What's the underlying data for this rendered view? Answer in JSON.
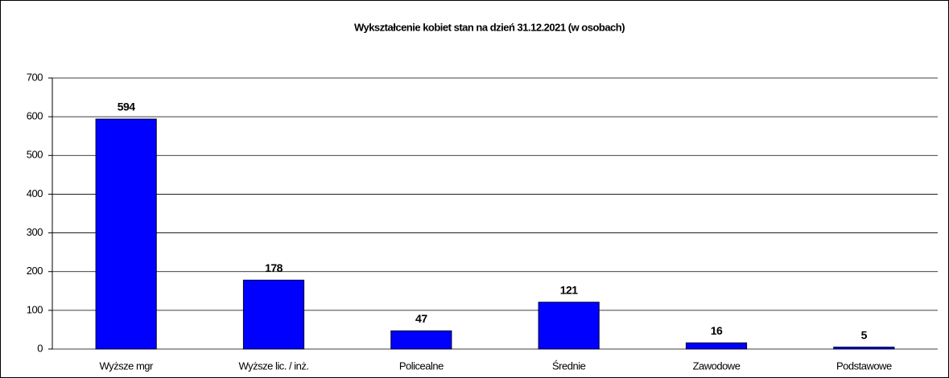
{
  "chart_data": {
    "type": "bar",
    "title": "Wykształcenie kobiet stan na dzień 31.12.2021 (w osobach)",
    "categories": [
      "Wyższe mgr",
      "Wyższe lic. / inż.",
      "Policealne",
      "Średnie",
      "Zawodowe",
      "Podstawowe"
    ],
    "values": [
      594,
      178,
      47,
      121,
      16,
      5
    ],
    "color": "#0000ff",
    "ylim": [
      0,
      700
    ],
    "yticks": [
      0,
      100,
      200,
      300,
      400,
      500,
      600,
      700
    ],
    "grid": true
  }
}
